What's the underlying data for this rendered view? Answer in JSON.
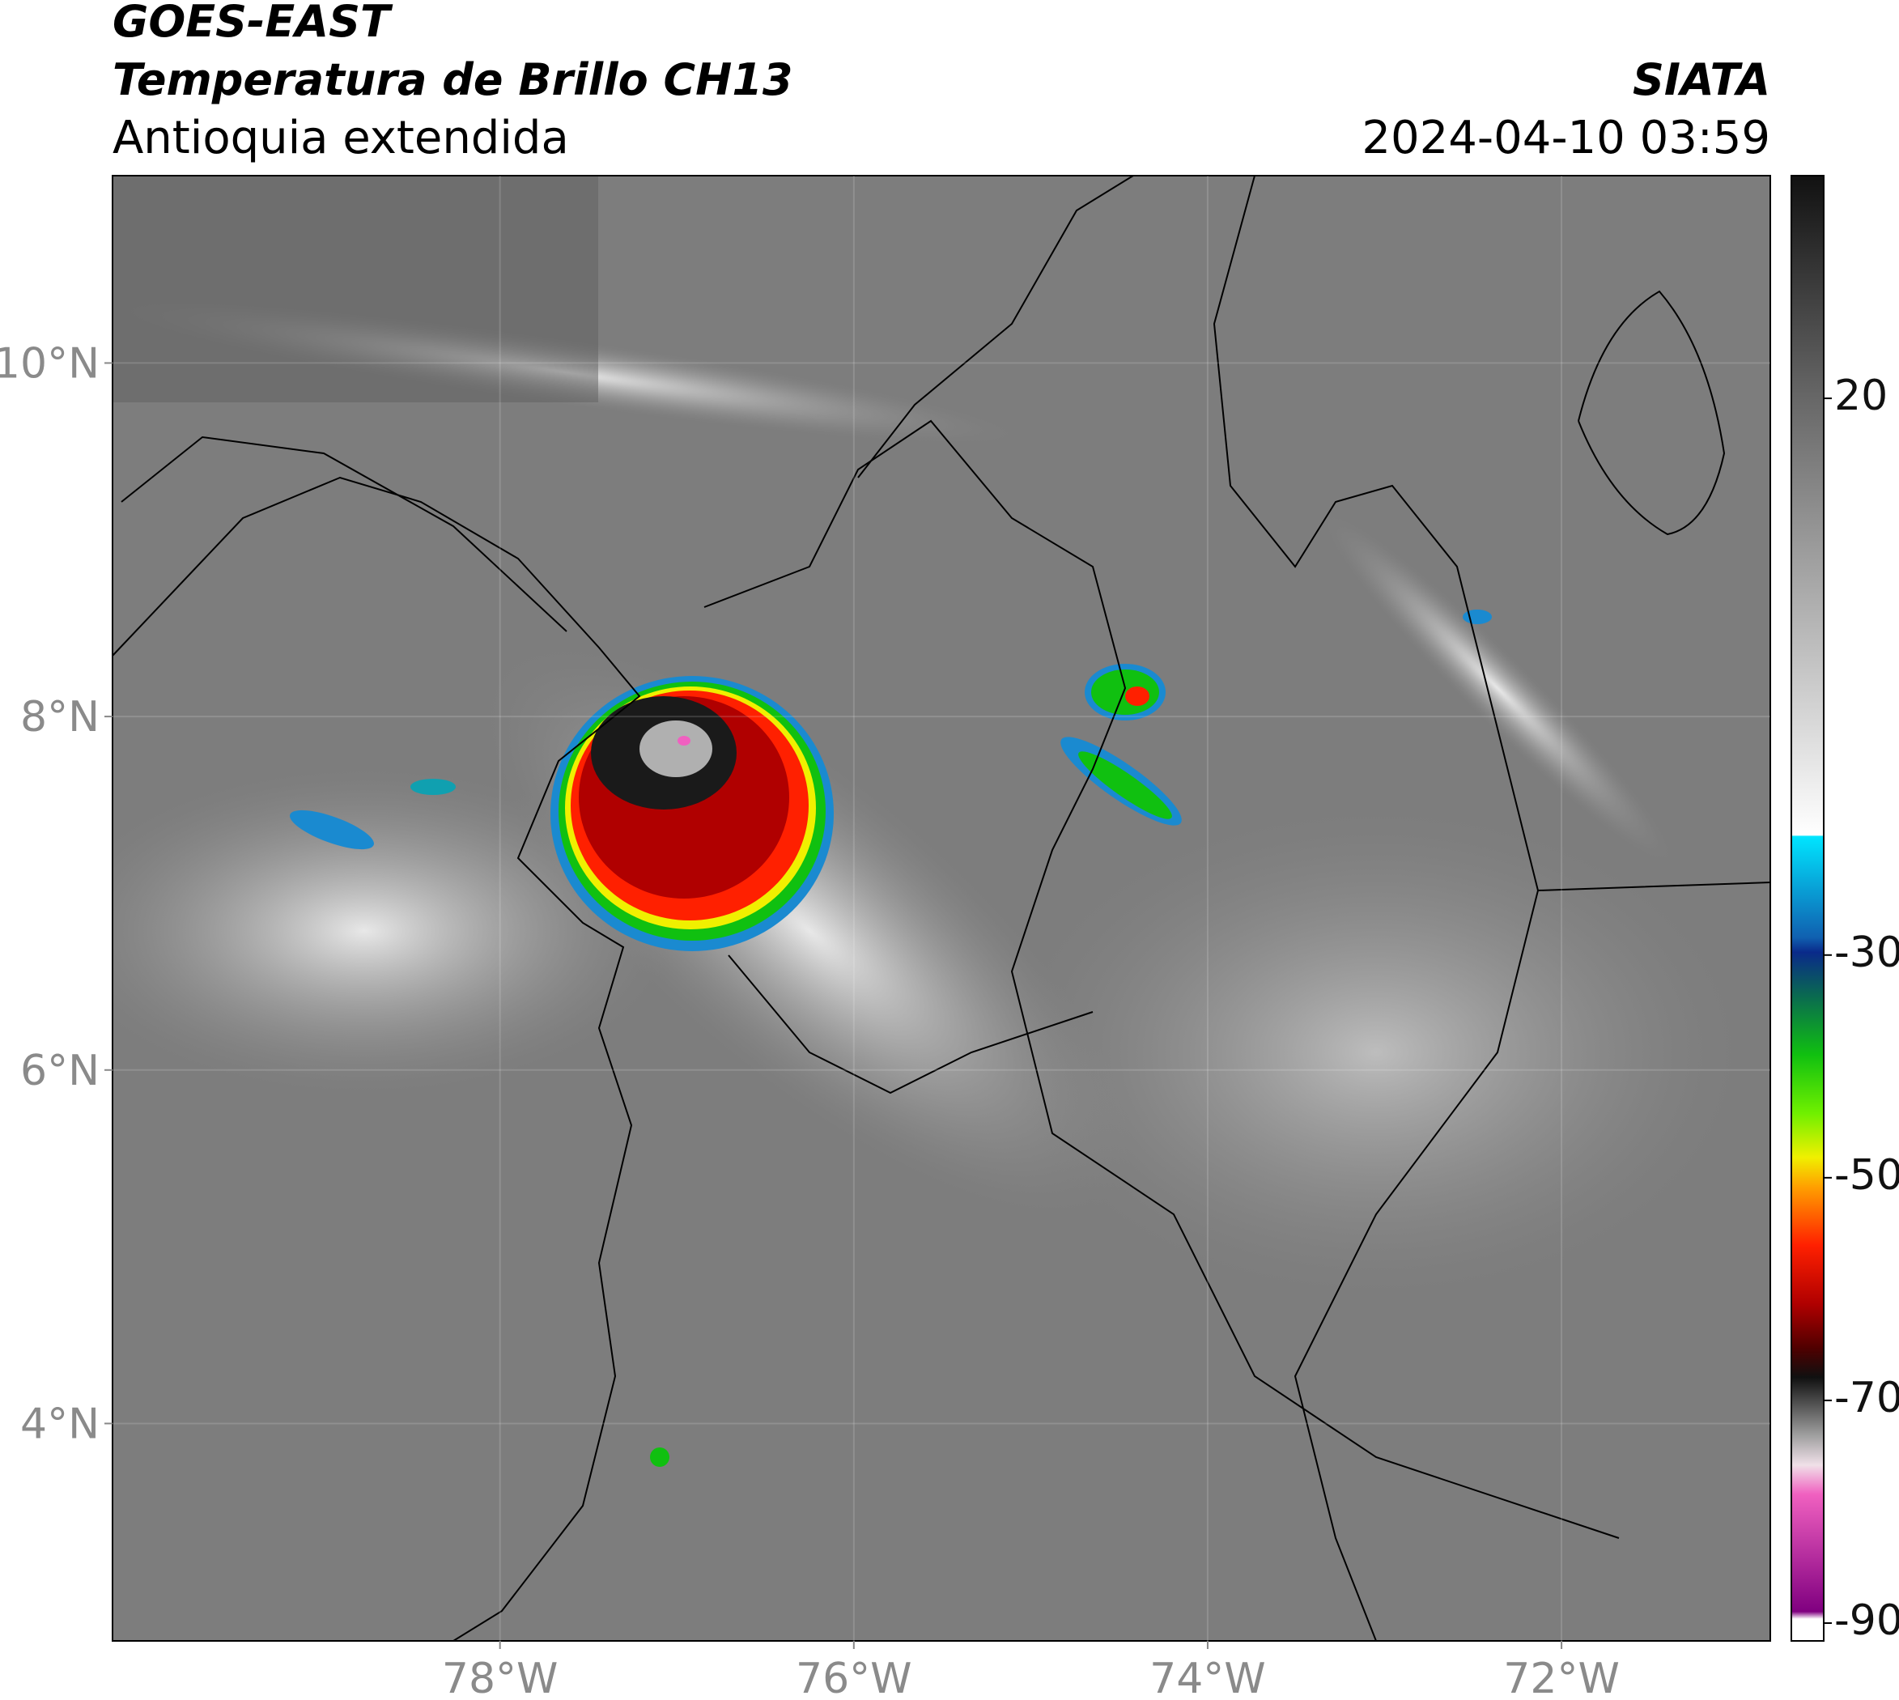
{
  "header": {
    "satellite": "GOES-EAST",
    "product": "Temperatura de Brillo CH13",
    "region": "Antioquia extendida",
    "source": "SIATA",
    "datetime": "2024-04-10 03:59"
  },
  "map": {
    "xlim": [
      -80.19,
      -70.82
    ],
    "ylim": [
      2.77,
      11.06
    ],
    "xticks": [
      {
        "value": -78,
        "label": "78°W"
      },
      {
        "value": -76,
        "label": "76°W"
      },
      {
        "value": -74,
        "label": "74°W"
      },
      {
        "value": -72,
        "label": "72°W"
      }
    ],
    "yticks": [
      {
        "value": 4,
        "label": "4°N"
      },
      {
        "value": 6,
        "label": "6°N"
      },
      {
        "value": 8,
        "label": "8°N"
      },
      {
        "value": 10,
        "label": "10°N"
      }
    ],
    "grid": true
  },
  "colorbar": {
    "lim": [
      -91.6,
      40
    ],
    "ticks": [
      -90,
      -70,
      -50,
      -30,
      20
    ]
  }
}
